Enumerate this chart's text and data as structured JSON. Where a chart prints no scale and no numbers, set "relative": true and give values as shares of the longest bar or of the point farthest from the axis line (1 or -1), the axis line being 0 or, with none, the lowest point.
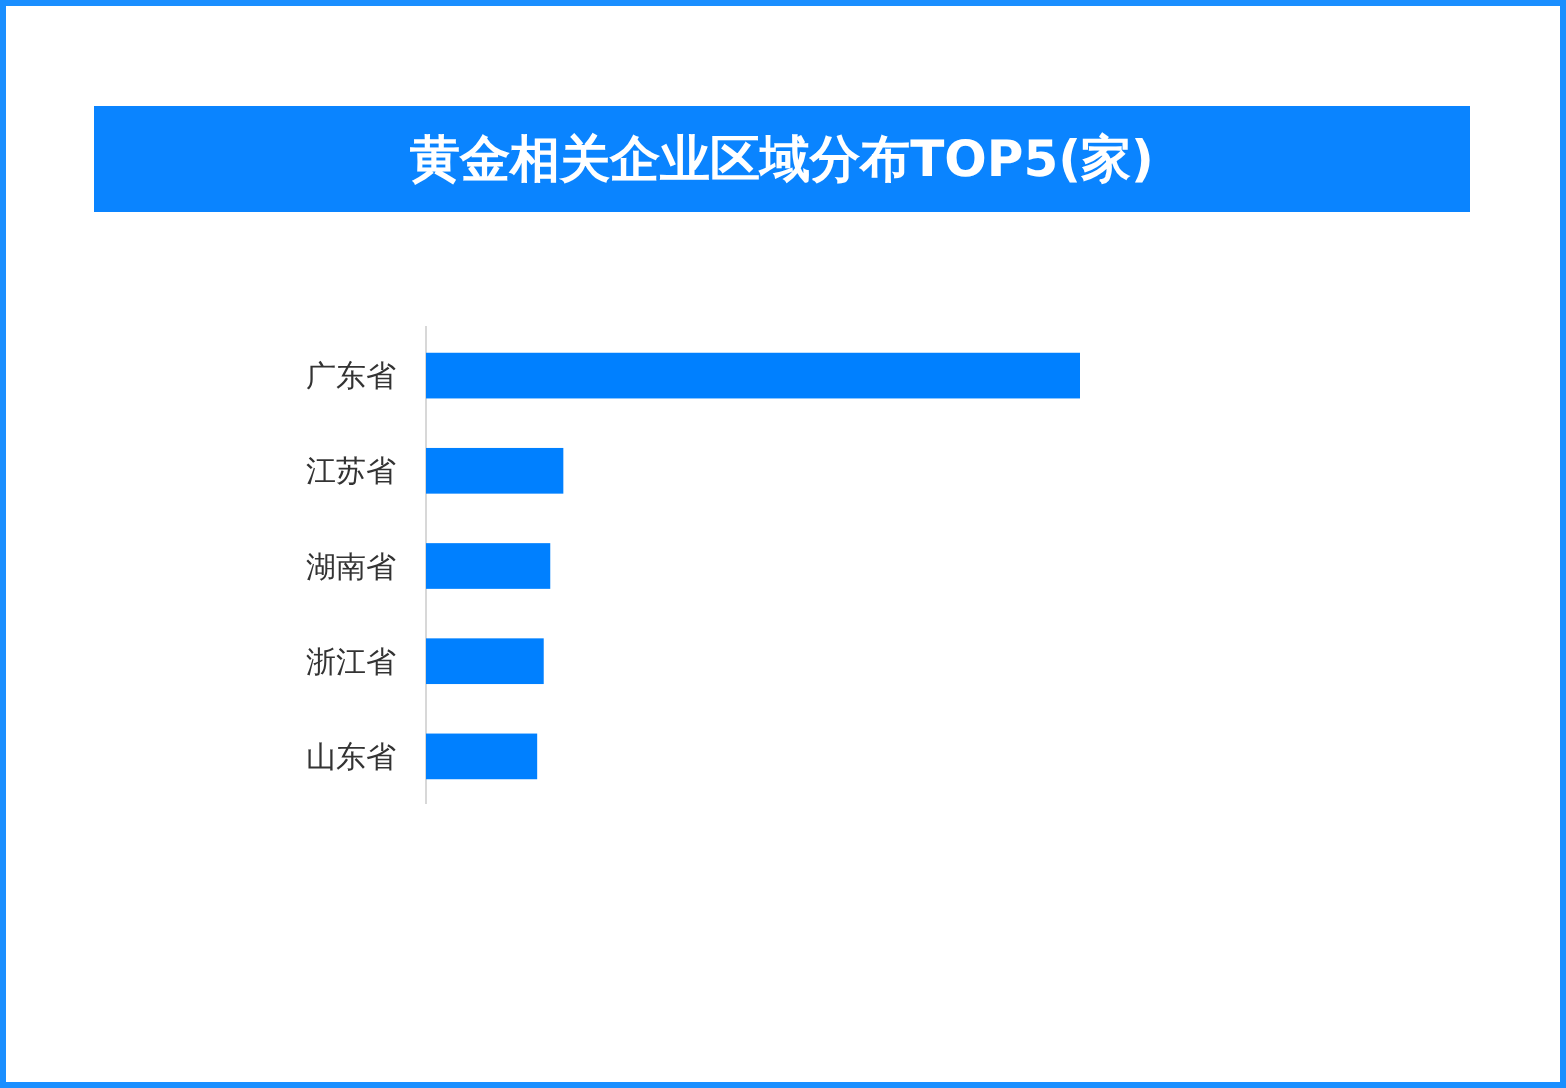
{
  "chart_data": {
    "type": "bar",
    "title": "黄金相关企业区域分布TOP5(家)",
    "orientation": "horizontal",
    "relative": true,
    "categories": [
      "广东省",
      "江苏省",
      "湖南省",
      "浙江省",
      "山东省"
    ],
    "values": [
      1,
      0.21,
      0.19,
      0.18,
      0.17
    ],
    "color": "#0080ff"
  }
}
